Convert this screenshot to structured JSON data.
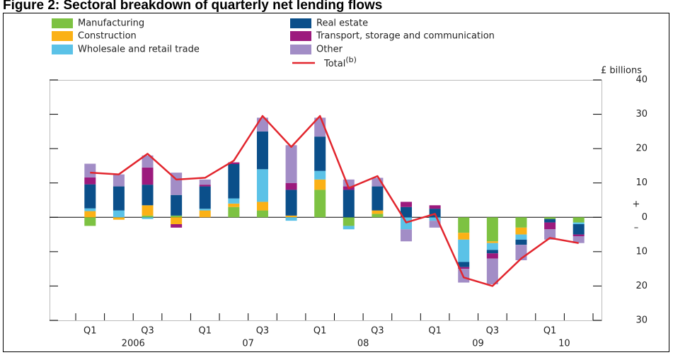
{
  "chart_data": {
    "type": "bar",
    "title": "Figure 2: Sectoral breakdown of quarterly net lending flows",
    "y_unit": "£ billions",
    "positive_sign": "+",
    "negative_sign": "–",
    "categories": [
      "Q1",
      null,
      "Q3",
      null,
      "Q1",
      null,
      "Q3",
      null,
      "Q1",
      null,
      "Q3",
      null,
      "Q1",
      null,
      "Q3",
      null,
      "Q1",
      null
    ],
    "year_labels": [
      "2006",
      "07",
      "08",
      "09",
      "10"
    ],
    "ylim": [
      -30,
      40
    ],
    "yticks": [
      {
        "value": -30,
        "label": "30"
      },
      {
        "value": -20,
        "label": "20"
      },
      {
        "value": -10,
        "label": "10"
      },
      0,
      10,
      20,
      30,
      40
    ],
    "series": [
      {
        "name": "Manufacturing",
        "color": "#7dc242",
        "values": [
          -2.5,
          0,
          0.5,
          0.5,
          0,
          3,
          2,
          0,
          8,
          -2.5,
          1,
          0,
          0,
          -4.5,
          -7,
          -3,
          -0.5,
          -1.5
        ]
      },
      {
        "name": "Construction",
        "color": "#fbb116",
        "values": [
          1.8,
          -0.7,
          3,
          -2,
          2,
          1,
          2.5,
          0.5,
          3,
          0,
          1,
          0,
          0,
          -2,
          -0.5,
          -2,
          0,
          0
        ]
      },
      {
        "name": "Wholesale and retail trade",
        "color": "#5bc2e7",
        "values": [
          0.8,
          2,
          -0.5,
          0,
          0.5,
          1.5,
          9.5,
          -1,
          2.5,
          -1,
          0,
          -3.5,
          -1,
          -6.5,
          -2,
          -1.5,
          0,
          -0.5
        ]
      },
      {
        "name": "Real estate",
        "color": "#0b4f8a",
        "values": [
          7,
          7,
          6,
          6,
          6.5,
          10,
          11,
          7.5,
          10,
          8,
          7,
          3,
          2.5,
          -1.5,
          -1,
          -1.5,
          -1,
          -3
        ]
      },
      {
        "name": "Transport, storage and communication",
        "color": "#9c1a7d",
        "values": [
          2,
          0,
          5,
          -1,
          0.5,
          0.5,
          0,
          2,
          0,
          1,
          0,
          1.5,
          1,
          -0.5,
          -1.5,
          0,
          -2,
          -0.5
        ]
      },
      {
        "name": "Other",
        "color": "#a28dc6",
        "values": [
          4,
          3.5,
          3.5,
          6.5,
          1.5,
          0,
          4,
          11,
          5.5,
          2,
          2.5,
          -3.5,
          -2,
          -4,
          -7.5,
          -4.5,
          -3,
          -2
        ]
      }
    ],
    "line": {
      "name": "Total",
      "name_note": "(b)",
      "color": "#e2262e",
      "values": [
        13,
        12.5,
        18.5,
        11,
        11.5,
        16.5,
        29.5,
        20.5,
        29.5,
        8.5,
        12,
        -1.5,
        1,
        -17.5,
        -20,
        -12,
        -6,
        -7.5
      ]
    }
  }
}
